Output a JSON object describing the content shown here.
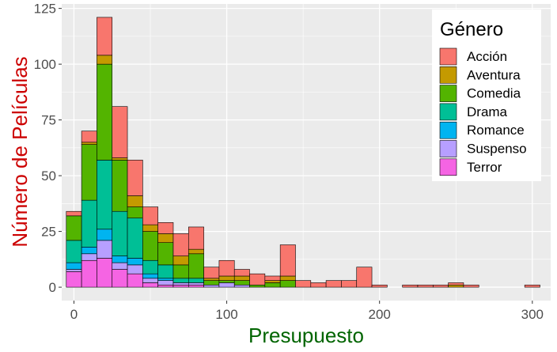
{
  "chart_data": {
    "type": "bar",
    "stacked": true,
    "xlabel": "Presupuesto",
    "ylabel": "Número de Películas",
    "xlabel_color": "#006400",
    "ylabel_color": "#cc0000",
    "x_ticks": [
      0,
      100,
      200,
      300
    ],
    "y_ticks": [
      0,
      25,
      50,
      75,
      100,
      125
    ],
    "xlim": [
      -8,
      312
    ],
    "ylim": [
      -6,
      127
    ],
    "bin_width": 10,
    "panel_color": "#ebebeb",
    "grid": true,
    "legend": {
      "title": "Género",
      "position": "top-right"
    },
    "bins": [
      0,
      10,
      20,
      30,
      40,
      50,
      60,
      70,
      80,
      90,
      100,
      110,
      120,
      130,
      140,
      150,
      160,
      170,
      180,
      190,
      200,
      210,
      220,
      230,
      240,
      250,
      260,
      270,
      280,
      290,
      300
    ],
    "series": [
      {
        "name": "Terror",
        "color": "#F564E3",
        "values": [
          7,
          12,
          13,
          8,
          6,
          2,
          1,
          1,
          1,
          0,
          0,
          0,
          0,
          0,
          0,
          0,
          0,
          0,
          0,
          0,
          0,
          0,
          0,
          0,
          0,
          0,
          0,
          0,
          0,
          0,
          0
        ]
      },
      {
        "name": "Suspenso",
        "color": "#B79FFF",
        "values": [
          1,
          3,
          8,
          3,
          4,
          2,
          2,
          1,
          1,
          1,
          2,
          1,
          0,
          0,
          0,
          0,
          0,
          0,
          0,
          0,
          0,
          0,
          0,
          0,
          0,
          0,
          0,
          0,
          0,
          0,
          0
        ]
      },
      {
        "name": "Romance",
        "color": "#00B4F0",
        "values": [
          3,
          3,
          5,
          3,
          3,
          2,
          1,
          0,
          0,
          0,
          0,
          0,
          0,
          0,
          0,
          0,
          0,
          0,
          0,
          0,
          0,
          0,
          0,
          0,
          0,
          0,
          0,
          0,
          0,
          0,
          0
        ]
      },
      {
        "name": "Drama",
        "color": "#00BF96",
        "values": [
          10,
          21,
          31,
          20,
          18,
          6,
          6,
          2,
          2,
          0,
          0,
          0,
          0,
          0,
          0,
          0,
          0,
          0,
          0,
          0,
          0,
          0,
          0,
          0,
          0,
          0,
          0,
          0,
          0,
          0,
          0
        ]
      },
      {
        "name": "Comedia",
        "color": "#53B400",
        "values": [
          11,
          25,
          43,
          23,
          5,
          13,
          10,
          6,
          11,
          2,
          1,
          2,
          1,
          2,
          3,
          0,
          0,
          0,
          0,
          0,
          0,
          0,
          0,
          0,
          0,
          0,
          0,
          0,
          0,
          0,
          0
        ]
      },
      {
        "name": "Aventura",
        "color": "#C49A00",
        "values": [
          0,
          1,
          4,
          1,
          5,
          3,
          4,
          4,
          2,
          1,
          2,
          2,
          0,
          1,
          2,
          0,
          0,
          0,
          0,
          0,
          0,
          0,
          0,
          0,
          0,
          1,
          0,
          0,
          0,
          0,
          0
        ]
      },
      {
        "name": "Acción",
        "color": "#F8766D",
        "values": [
          2,
          5,
          17,
          23,
          16,
          8,
          5,
          10,
          10,
          5,
          7,
          3,
          5,
          2,
          14,
          3,
          2,
          3,
          3,
          9,
          1,
          0,
          1,
          1,
          1,
          1,
          1,
          0,
          0,
          0,
          1
        ]
      }
    ]
  }
}
